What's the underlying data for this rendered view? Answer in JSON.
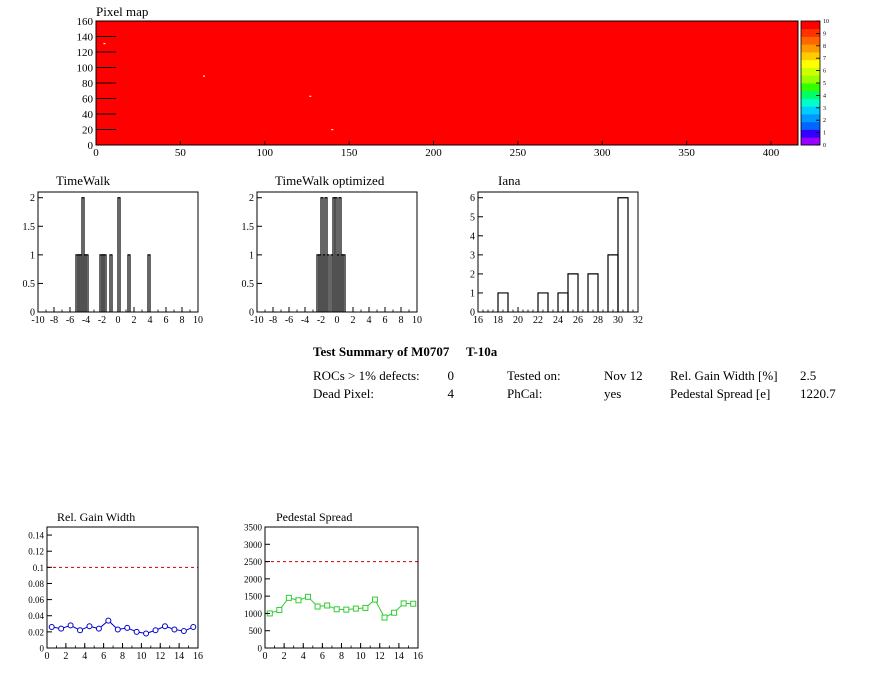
{
  "chart_data": [
    {
      "type": "heatmap",
      "title": "Pixel map",
      "x_ticks": [
        0,
        50,
        100,
        150,
        200,
        250,
        300,
        350,
        400
      ],
      "y_ticks": [
        0,
        20,
        40,
        60,
        80,
        100,
        120,
        140,
        160
      ],
      "xlim": [
        0,
        416
      ],
      "ylim": [
        0,
        160
      ],
      "fill_value": 10,
      "fill_color": "#ff0000",
      "points": [
        {
          "x": 5,
          "y": 131
        },
        {
          "x": 64,
          "y": 89
        },
        {
          "x": 127,
          "y": 63
        },
        {
          "x": 140,
          "y": 20
        }
      ],
      "palette": {
        "ticks": [
          0,
          1,
          2,
          3,
          4,
          5,
          6,
          7,
          8,
          9,
          10
        ],
        "colors": [
          "#9900ff",
          "#3300ff",
          "#0066ff",
          "#0099ff",
          "#00ccff",
          "#00ffcc",
          "#00ff66",
          "#33ff00",
          "#99ff00",
          "#ccff00",
          "#ffff00",
          "#ffcc00",
          "#ff9900",
          "#ff6600",
          "#ff3300",
          "#ff0000"
        ]
      }
    },
    {
      "type": "bar",
      "title": "TimeWalk",
      "x_ticks": [
        "-10",
        "-8",
        "-6",
        "-4",
        "-2",
        "0",
        "2",
        "4",
        "6",
        "8",
        "10"
      ],
      "y_ticks": [
        "0",
        "0.5",
        "1",
        "1.5",
        "2"
      ],
      "xlim": [
        -10,
        10
      ],
      "ylim": [
        0,
        2.1
      ],
      "bin_width": 0.25,
      "bins": [
        {
          "x": -5.25,
          "value": 1
        },
        {
          "x": -5.0,
          "value": 1
        },
        {
          "x": -4.75,
          "value": 1
        },
        {
          "x": -4.5,
          "value": 2
        },
        {
          "x": -4.25,
          "value": 1
        },
        {
          "x": -4.0,
          "value": 1
        },
        {
          "x": -2.25,
          "value": 1
        },
        {
          "x": -2.0,
          "value": 1
        },
        {
          "x": -1.75,
          "value": 1
        },
        {
          "x": -1.0,
          "value": 1
        },
        {
          "x": 0.0,
          "value": 2
        },
        {
          "x": 1.25,
          "value": 1
        },
        {
          "x": 3.75,
          "value": 1
        }
      ]
    },
    {
      "type": "bar",
      "title": "TimeWalk optimized",
      "x_ticks": [
        "-10",
        "-8",
        "-6",
        "-4",
        "-2",
        "0",
        "2",
        "4",
        "6",
        "8",
        "10"
      ],
      "y_ticks": [
        "0",
        "0.5",
        "1",
        "1.5",
        "2"
      ],
      "xlim": [
        -10,
        10
      ],
      "ylim": [
        0,
        2.1
      ],
      "bin_width": 0.25,
      "bins": [
        {
          "x": -2.5,
          "value": 1
        },
        {
          "x": -2.25,
          "value": 1
        },
        {
          "x": -2.0,
          "value": 2
        },
        {
          "x": -1.75,
          "value": 1
        },
        {
          "x": -1.5,
          "value": 2
        },
        {
          "x": -1.25,
          "value": 1
        },
        {
          "x": -0.75,
          "value": 1
        },
        {
          "x": -0.5,
          "value": 2
        },
        {
          "x": -0.25,
          "value": 2
        },
        {
          "x": 0.0,
          "value": 1
        },
        {
          "x": 0.25,
          "value": 2
        },
        {
          "x": 0.5,
          "value": 1
        },
        {
          "x": 0.75,
          "value": 1
        }
      ]
    },
    {
      "type": "bar",
      "title": "Iana",
      "x_ticks": [
        "16",
        "18",
        "20",
        "22",
        "24",
        "26",
        "28",
        "30",
        "32"
      ],
      "y_ticks": [
        "0",
        "1",
        "2",
        "3",
        "4",
        "5",
        "6"
      ],
      "xlim": [
        16,
        32
      ],
      "ylim": [
        0,
        6.3
      ],
      "bin_width": 1,
      "bins": [
        {
          "x": 18,
          "value": 1
        },
        {
          "x": 22,
          "value": 1
        },
        {
          "x": 24,
          "value": 1
        },
        {
          "x": 25,
          "value": 2
        },
        {
          "x": 27,
          "value": 2
        },
        {
          "x": 29,
          "value": 3
        },
        {
          "x": 30,
          "value": 6
        }
      ]
    },
    {
      "type": "line",
      "title": "Rel. Gain Width",
      "x_ticks": [
        "0",
        "2",
        "4",
        "6",
        "8",
        "10",
        "12",
        "14",
        "16"
      ],
      "y_ticks": [
        "0",
        "0.02",
        "0.04",
        "0.06",
        "0.08",
        "0.1",
        "0.12",
        "0.14"
      ],
      "xlim": [
        0,
        16
      ],
      "ylim": [
        0,
        0.15
      ],
      "reference": 0.1,
      "color": "#0000cc",
      "marker": "circle",
      "x": [
        0.5,
        1.5,
        2.5,
        3.5,
        4.5,
        5.5,
        6.5,
        7.5,
        8.5,
        9.5,
        10.5,
        11.5,
        12.5,
        13.5,
        14.5,
        15.5
      ],
      "y": [
        0.026,
        0.024,
        0.028,
        0.022,
        0.027,
        0.024,
        0.034,
        0.023,
        0.025,
        0.02,
        0.018,
        0.022,
        0.027,
        0.023,
        0.021,
        0.026
      ]
    },
    {
      "type": "line",
      "title": "Pedestal Spread",
      "x_ticks": [
        "0",
        "2",
        "4",
        "6",
        "8",
        "10",
        "12",
        "14",
        "16"
      ],
      "y_ticks": [
        "0",
        "500",
        "1000",
        "1500",
        "2000",
        "2500",
        "3000",
        "3500"
      ],
      "xlim": [
        0,
        16
      ],
      "ylim": [
        0,
        3500
      ],
      "reference": 2500,
      "color": "#33cc33",
      "marker": "square",
      "x": [
        0.5,
        1.5,
        2.5,
        3.5,
        4.5,
        5.5,
        6.5,
        7.5,
        8.5,
        9.5,
        10.5,
        11.5,
        12.5,
        13.5,
        14.5,
        15.5
      ],
      "y": [
        1000,
        1100,
        1450,
        1380,
        1480,
        1200,
        1230,
        1120,
        1110,
        1140,
        1160,
        1400,
        880,
        1020,
        1290,
        1280
      ]
    }
  ],
  "summary": {
    "title_left": "Test Summary of M0707",
    "title_right": "T-10a",
    "rows": [
      {
        "l1": "ROCs > 1% defects:",
        "v1": "0",
        "l2": "Tested on:",
        "v2": "Nov 12",
        "l3": "Rel. Gain Width [%]",
        "v3": "2.5"
      },
      {
        "l1": "Dead Pixel:",
        "v1": "4",
        "l2": "PhCal:",
        "v2": "yes",
        "l3": "Pedestal Spread [e]",
        "v3": "1220.7"
      }
    ]
  }
}
